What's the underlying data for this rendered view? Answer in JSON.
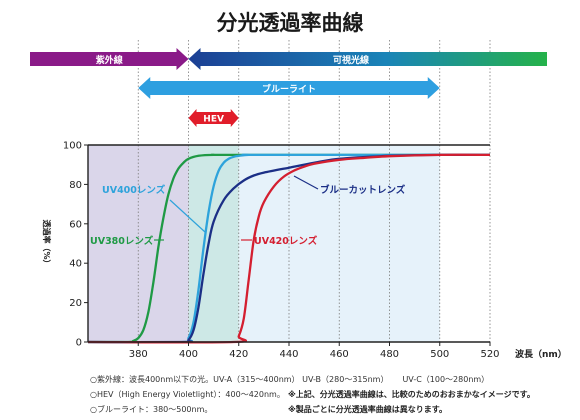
{
  "chart_data": {
    "type": "line",
    "title": "分光透過率曲線",
    "xlabel": "波長（nm）",
    "ylabel": "透過率（%）",
    "xlim": [
      360,
      520
    ],
    "ylim": [
      0,
      100
    ],
    "x_ticks": [
      "380",
      "400",
      "420",
      "440",
      "460",
      "480",
      "500",
      "520"
    ],
    "y_ticks": [
      "0",
      "20",
      "40",
      "60",
      "80",
      "100"
    ],
    "grid": "vertical-dotted",
    "bands": [
      {
        "name": "紫外線",
        "from": 360,
        "to": 400,
        "color": "#8a1a88"
      },
      {
        "name": "可視光線",
        "from": 400,
        "to": 520,
        "color": "#1aa7a0"
      },
      {
        "name": "ブルーライト",
        "from": 380,
        "to": 500,
        "color": "#2e9fe0"
      },
      {
        "name": "HEV",
        "from": 400,
        "to": 420,
        "color": "#e11d2a"
      }
    ],
    "regions": [
      {
        "from": 360,
        "to": 400,
        "color": "#dad6ea"
      },
      {
        "from": 400,
        "to": 420,
        "color": "#cde8e6"
      },
      {
        "from": 420,
        "to": 500,
        "color": "#e6f2fa"
      }
    ],
    "series": [
      {
        "name": "UV380レンズ",
        "color": "#1f9a45",
        "x": [
          360,
          376,
          378,
          380,
          382,
          384,
          386,
          388,
          390,
          392,
          394,
          396,
          398,
          400,
          404,
          410,
          420,
          520
        ],
        "y": [
          0,
          0,
          0.5,
          2,
          6,
          15,
          30,
          48,
          63,
          75,
          83,
          88,
          91,
          93,
          94.5,
          95,
          95,
          95
        ]
      },
      {
        "name": "UV400レンズ",
        "color": "#2ea3db",
        "x": [
          360,
          398,
          400,
          402,
          404,
          406,
          408,
          410,
          412,
          414,
          416,
          418,
          420,
          424,
          430,
          520
        ],
        "y": [
          0,
          0,
          2,
          10,
          27,
          48,
          66,
          79,
          87,
          91,
          93,
          94,
          94.5,
          95,
          95,
          95
        ]
      },
      {
        "name": "ブルーカットレンズ",
        "color": "#1b2f86",
        "x": [
          360,
          398,
          400,
          402,
          404,
          406,
          408,
          410,
          414,
          418,
          422,
          426,
          430,
          440,
          450,
          460,
          480,
          500,
          520
        ],
        "y": [
          0,
          0,
          1,
          6,
          18,
          35,
          50,
          61,
          72,
          78,
          82,
          84.5,
          86,
          88.5,
          91,
          93,
          94.5,
          95,
          95
        ]
      },
      {
        "name": "UV420レンズ",
        "color": "#d41f30",
        "x": [
          360,
          418,
          420,
          422,
          424,
          426,
          428,
          430,
          434,
          438,
          442,
          446,
          450,
          460,
          470,
          480,
          500,
          520
        ],
        "y": [
          0,
          0,
          3,
          12,
          32,
          52,
          64,
          71,
          79,
          84,
          87,
          89,
          90.5,
          92.5,
          93.5,
          94.3,
          95,
          95
        ]
      }
    ]
  },
  "notes": {
    "uv": "○紫外線：波長400nm以下の光。UV-A（315～400nm）  UV-B（280～315nm）",
    "uvc": "UV-C（100～280nm）",
    "hev": "○HEV（High Energy Violetlight）：400～420nm。",
    "blue": "○ブルーライト：380～500nm。",
    "remark1": "※上記、分光透過率曲線は、比較のためのおおまかなイメージです。",
    "remark2": "※製品ごとに分光透過率曲線は異なります。"
  },
  "colors": {
    "uv_arrow": "#8a1a88",
    "visible_arrow_start": "#1c3f94",
    "visible_arrow_end": "#25b24a",
    "blue_arrow": "#2e9fe0",
    "hev_arrow": "#e11d2a"
  }
}
